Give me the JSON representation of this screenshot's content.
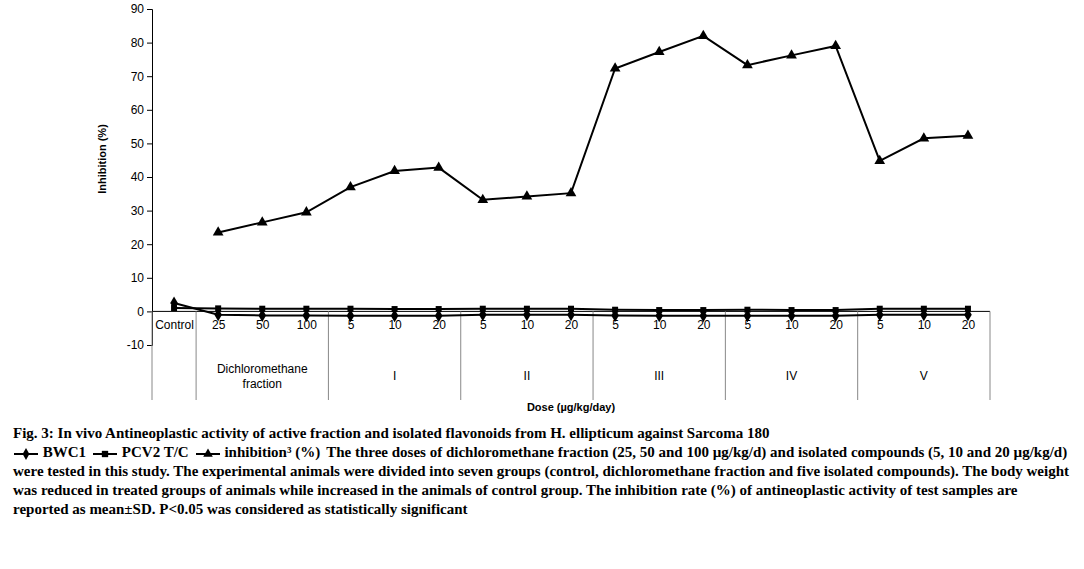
{
  "chart_data": {
    "type": "line",
    "title": "Fig. 3: In vivo Antineoplastic activity of active fraction and isolated flavonoids from H. ellipticum against Sarcoma 180",
    "caption": "The three doses of dichloromethane fraction (25, 50 and 100 µg/kg/d) and isolated compounds (5, 10 and 20 µg/kg/d) were tested in this study. The experimental animals were divided into seven groups (control, dichloromethane fraction and five isolated compounds). The body weight was reduced in treated groups of animals while increased in the animals of control group. The inhibition rate (%) of antineoplastic activity of test samples are reported as mean±SD. P<0.05 was considered as statistically significant",
    "x_label": "Dose (µg/kg/day)",
    "y_label": "Inhibition (%)",
    "categories": [
      "Control",
      "25",
      "50",
      "100",
      "5",
      "10",
      "20",
      "5",
      "10",
      "20",
      "5",
      "10",
      "20",
      "5",
      "10",
      "20",
      "5",
      "10",
      "20"
    ],
    "category_groups": [
      null,
      "Dichloromethane fraction",
      "Dichloromethane fraction",
      "Dichloromethane fraction",
      "I",
      "I",
      "I",
      "II",
      "II",
      "II",
      "III",
      "III",
      "III",
      "IV",
      "IV",
      "IV",
      "V",
      "V",
      "V"
    ],
    "series": [
      {
        "name": "BWC1",
        "color": "#000000",
        "marker": "diamond",
        "values": [
          2.5,
          -1,
          -1.2,
          -1.2,
          -1.3,
          -1.3,
          -1.3,
          -1,
          -1,
          -1,
          -1.2,
          -1.3,
          -1.3,
          -1.3,
          -1.3,
          -1.3,
          -1,
          -1,
          -1
        ]
      },
      {
        "name": "PCV2 T/C",
        "color": "#000000",
        "marker": "square",
        "values": [
          1,
          0.9,
          0.8,
          0.8,
          0.8,
          0.7,
          0.7,
          0.8,
          0.8,
          0.8,
          0.5,
          0.4,
          0.4,
          0.5,
          0.4,
          0.4,
          0.8,
          0.8,
          0.8
        ]
      },
      {
        "name": "inhibition³ (%)",
        "color": "#000000",
        "marker": "triangle",
        "values": [
          null,
          23.5,
          26.5,
          29.5,
          37,
          41.8,
          42.8,
          33.2,
          34.2,
          35.2,
          72.3,
          77.2,
          82,
          73.3,
          76.2,
          79,
          44.8,
          51.5,
          52.3
        ]
      }
    ],
    "ylim": [
      -10,
      90
    ],
    "yticks": [
      -10,
      0,
      10,
      20,
      30,
      40,
      50,
      60,
      70,
      80,
      90
    ],
    "grid": false
  }
}
